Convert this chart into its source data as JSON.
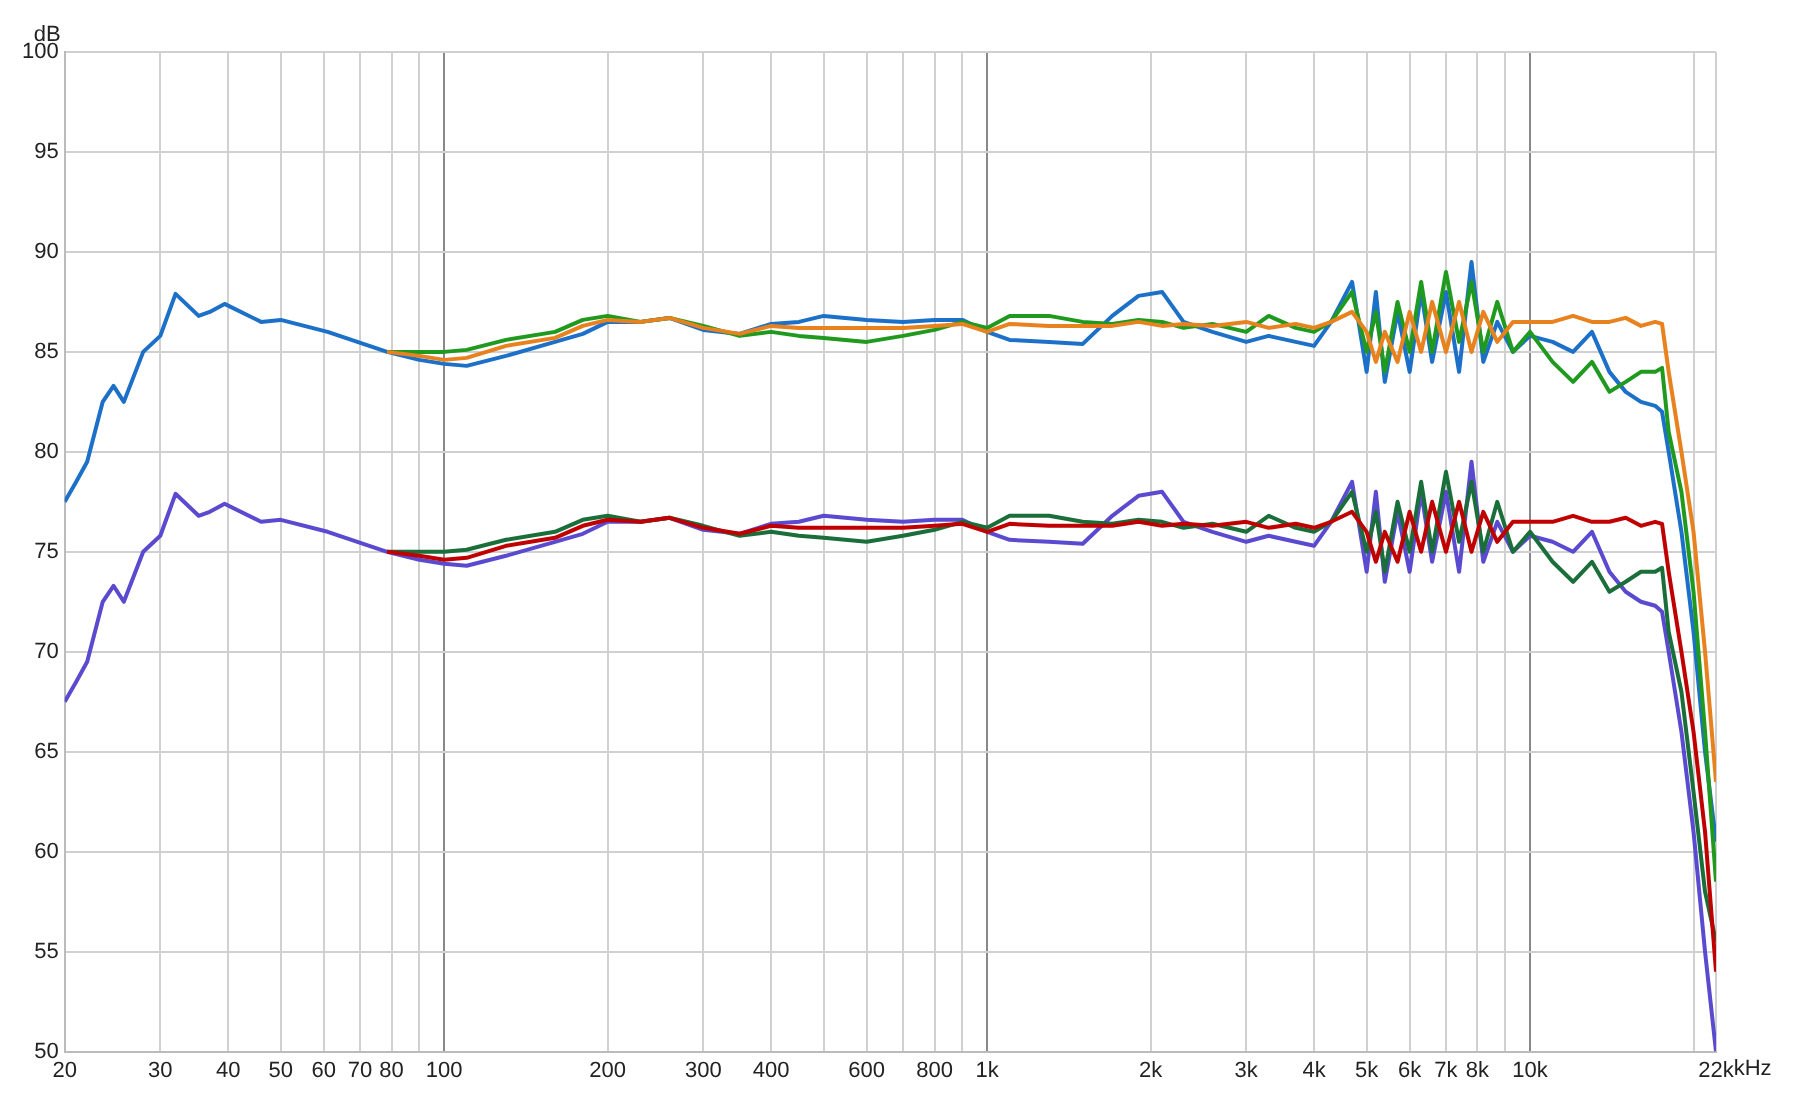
{
  "chart_data": {
    "type": "line",
    "ylabel": "dB",
    "xlabel": "kHz",
    "log": "x",
    "grid": true,
    "xlim": [
      20,
      22000
    ],
    "ylim": [
      50,
      100
    ],
    "xticks": [
      20,
      30,
      40,
      50,
      60,
      70,
      80,
      {
        "value": 90,
        "label": null
      },
      100,
      200,
      300,
      400,
      {
        "value": 500,
        "label": null
      },
      600,
      {
        "value": 700,
        "label": null
      },
      800,
      {
        "value": 900,
        "label": null
      },
      {
        "value": 1000,
        "label": "1k"
      },
      {
        "value": 2000,
        "label": "2k"
      },
      {
        "value": 3000,
        "label": "3k"
      },
      {
        "value": 4000,
        "label": "4k"
      },
      {
        "value": 5000,
        "label": "5k"
      },
      {
        "value": 6000,
        "label": "6k"
      },
      {
        "value": 7000,
        "label": "7k"
      },
      {
        "value": 8000,
        "label": "8k"
      },
      {
        "value": 9000,
        "label": null
      },
      {
        "value": 10000,
        "label": "10k"
      },
      {
        "value": 20000,
        "label": null
      },
      {
        "value": 22000,
        "label": "22k"
      }
    ],
    "yticks": [
      50,
      55,
      60,
      65,
      70,
      75,
      80,
      85,
      90,
      95,
      100
    ],
    "x": [
      20,
      21,
      22,
      23.5,
      24.6,
      25.7,
      27.9,
      30,
      32,
      35.3,
      37,
      39.4,
      46,
      50,
      61,
      78.5,
      90,
      100,
      110,
      130,
      160,
      180,
      200,
      230,
      260,
      300,
      350,
      400,
      450,
      500,
      600,
      700,
      800,
      900,
      1000,
      1100,
      1300,
      1500,
      1700,
      1900,
      2100,
      2300,
      2600,
      3000,
      3300,
      3700,
      4000,
      4300,
      4700,
      5000,
      5200,
      5400,
      5700,
      6000,
      6300,
      6600,
      7000,
      7400,
      7800,
      8200,
      8700,
      9300,
      10000,
      11000,
      12000,
      13000,
      14000,
      15000,
      16000,
      17000,
      17500,
      18000,
      19000,
      20000,
      21000,
      22000
    ],
    "series": [
      {
        "color": "#e8821e",
        "values": [
          null,
          null,
          null,
          null,
          null,
          null,
          null,
          null,
          null,
          null,
          null,
          null,
          null,
          null,
          null,
          85,
          84.8,
          84.6,
          84.7,
          85.3,
          85.7,
          86.3,
          86.6,
          86.5,
          86.7,
          86.2,
          85.9,
          86.3,
          86.2,
          86.2,
          86.2,
          86.2,
          86.3,
          86.4,
          86.0,
          86.4,
          86.3,
          86.3,
          86.3,
          86.5,
          86.3,
          86.4,
          86.3,
          86.5,
          86.2,
          86.4,
          86.2,
          86.5,
          87.0,
          86,
          84.5,
          86,
          84.5,
          87,
          85,
          87.5,
          85,
          87.5,
          85,
          87,
          85.5,
          86.5,
          86.5,
          86.5,
          86.8,
          86.5,
          86.5,
          86.7,
          86.3,
          86.5,
          86.4,
          84,
          80,
          76,
          70,
          63.5
        ]
      },
      {
        "color": "#1f9a1f",
        "values": [
          null,
          null,
          null,
          null,
          null,
          null,
          null,
          null,
          null,
          null,
          null,
          null,
          null,
          null,
          null,
          85,
          85,
          85,
          85.1,
          85.6,
          86.0,
          86.6,
          86.8,
          86.5,
          86.7,
          86.3,
          85.8,
          86.0,
          85.8,
          85.7,
          85.5,
          85.8,
          86.1,
          86.5,
          86.2,
          86.8,
          86.8,
          86.5,
          86.4,
          86.6,
          86.5,
          86.2,
          86.4,
          86.0,
          86.8,
          86.2,
          86.0,
          86.5,
          88.0,
          85,
          87,
          84,
          87.5,
          85,
          88.5,
          85,
          89,
          85.5,
          88.5,
          85,
          87.5,
          85,
          86,
          84.5,
          83.5,
          84.5,
          83,
          83.5,
          84,
          84,
          84.2,
          81,
          78,
          73,
          66,
          58.5
        ]
      },
      {
        "color": "#1c70c8",
        "values": [
          77.5,
          78.5,
          79.5,
          82.5,
          83.3,
          82.5,
          85,
          85.8,
          87.9,
          86.8,
          87,
          87.4,
          86.5,
          86.6,
          86,
          85,
          84.6,
          84.4,
          84.3,
          84.8,
          85.5,
          85.9,
          86.5,
          86.5,
          86.7,
          86.1,
          85.9,
          86.4,
          86.5,
          86.8,
          86.6,
          86.5,
          86.6,
          86.6,
          86.0,
          85.6,
          85.5,
          85.4,
          86.8,
          87.8,
          88.0,
          86.5,
          86.0,
          85.5,
          85.8,
          85.5,
          85.3,
          86.5,
          88.5,
          84,
          88,
          83.5,
          87,
          84,
          88,
          84.5,
          88,
          84,
          89.5,
          84.5,
          86.5,
          85,
          85.8,
          85.5,
          85,
          86,
          84,
          83,
          82.5,
          82.3,
          82,
          80,
          76,
          71,
          65,
          60.5
        ]
      },
      {
        "color": "#c00000",
        "values": [
          null,
          null,
          null,
          null,
          null,
          null,
          null,
          null,
          null,
          null,
          null,
          null,
          null,
          null,
          null,
          75,
          74.8,
          74.6,
          74.7,
          75.3,
          75.7,
          76.3,
          76.6,
          76.5,
          76.7,
          76.2,
          75.9,
          76.3,
          76.2,
          76.2,
          76.2,
          76.2,
          76.3,
          76.4,
          76.0,
          76.4,
          76.3,
          76.3,
          76.3,
          76.5,
          76.3,
          76.4,
          76.3,
          76.5,
          76.2,
          76.4,
          76.2,
          76.5,
          77.0,
          76,
          74.5,
          76,
          74.5,
          77,
          75,
          77.5,
          75,
          77.5,
          75,
          77,
          75.5,
          76.5,
          76.5,
          76.5,
          76.8,
          76.5,
          76.5,
          76.7,
          76.3,
          76.5,
          76.4,
          74,
          70,
          66,
          61,
          54
        ]
      },
      {
        "color": "#1a6e3a",
        "values": [
          null,
          null,
          null,
          null,
          null,
          null,
          null,
          null,
          null,
          null,
          null,
          null,
          null,
          null,
          null,
          75,
          75,
          75,
          75.1,
          75.6,
          76.0,
          76.6,
          76.8,
          76.5,
          76.7,
          76.3,
          75.8,
          76.0,
          75.8,
          75.7,
          75.5,
          75.8,
          76.1,
          76.5,
          76.2,
          76.8,
          76.8,
          76.5,
          76.4,
          76.6,
          76.5,
          76.2,
          76.4,
          76.0,
          76.8,
          76.2,
          76.0,
          76.5,
          78.0,
          75,
          77,
          74,
          77.5,
          75,
          78.5,
          75,
          79,
          75.5,
          78.5,
          75,
          77.5,
          75,
          76,
          74.5,
          73.5,
          74.5,
          73,
          73.5,
          74,
          74,
          74.2,
          71,
          68,
          63,
          58,
          55.5
        ]
      },
      {
        "color": "#5a4ad0",
        "values": [
          67.5,
          68.5,
          69.5,
          72.5,
          73.3,
          72.5,
          75,
          75.8,
          77.9,
          76.8,
          77,
          77.4,
          76.5,
          76.6,
          76,
          75,
          74.6,
          74.4,
          74.3,
          74.8,
          75.5,
          75.9,
          76.5,
          76.5,
          76.7,
          76.1,
          75.9,
          76.4,
          76.5,
          76.8,
          76.6,
          76.5,
          76.6,
          76.6,
          76.0,
          75.6,
          75.5,
          75.4,
          76.8,
          77.8,
          78.0,
          76.5,
          76.0,
          75.5,
          75.8,
          75.5,
          75.3,
          76.5,
          78.5,
          74,
          78,
          73.5,
          77,
          74,
          78,
          74.5,
          78,
          74,
          79.5,
          74.5,
          76.5,
          75,
          75.8,
          75.5,
          75,
          76,
          74,
          73,
          72.5,
          72.3,
          72,
          70,
          66,
          61,
          55,
          50
        ]
      }
    ]
  }
}
